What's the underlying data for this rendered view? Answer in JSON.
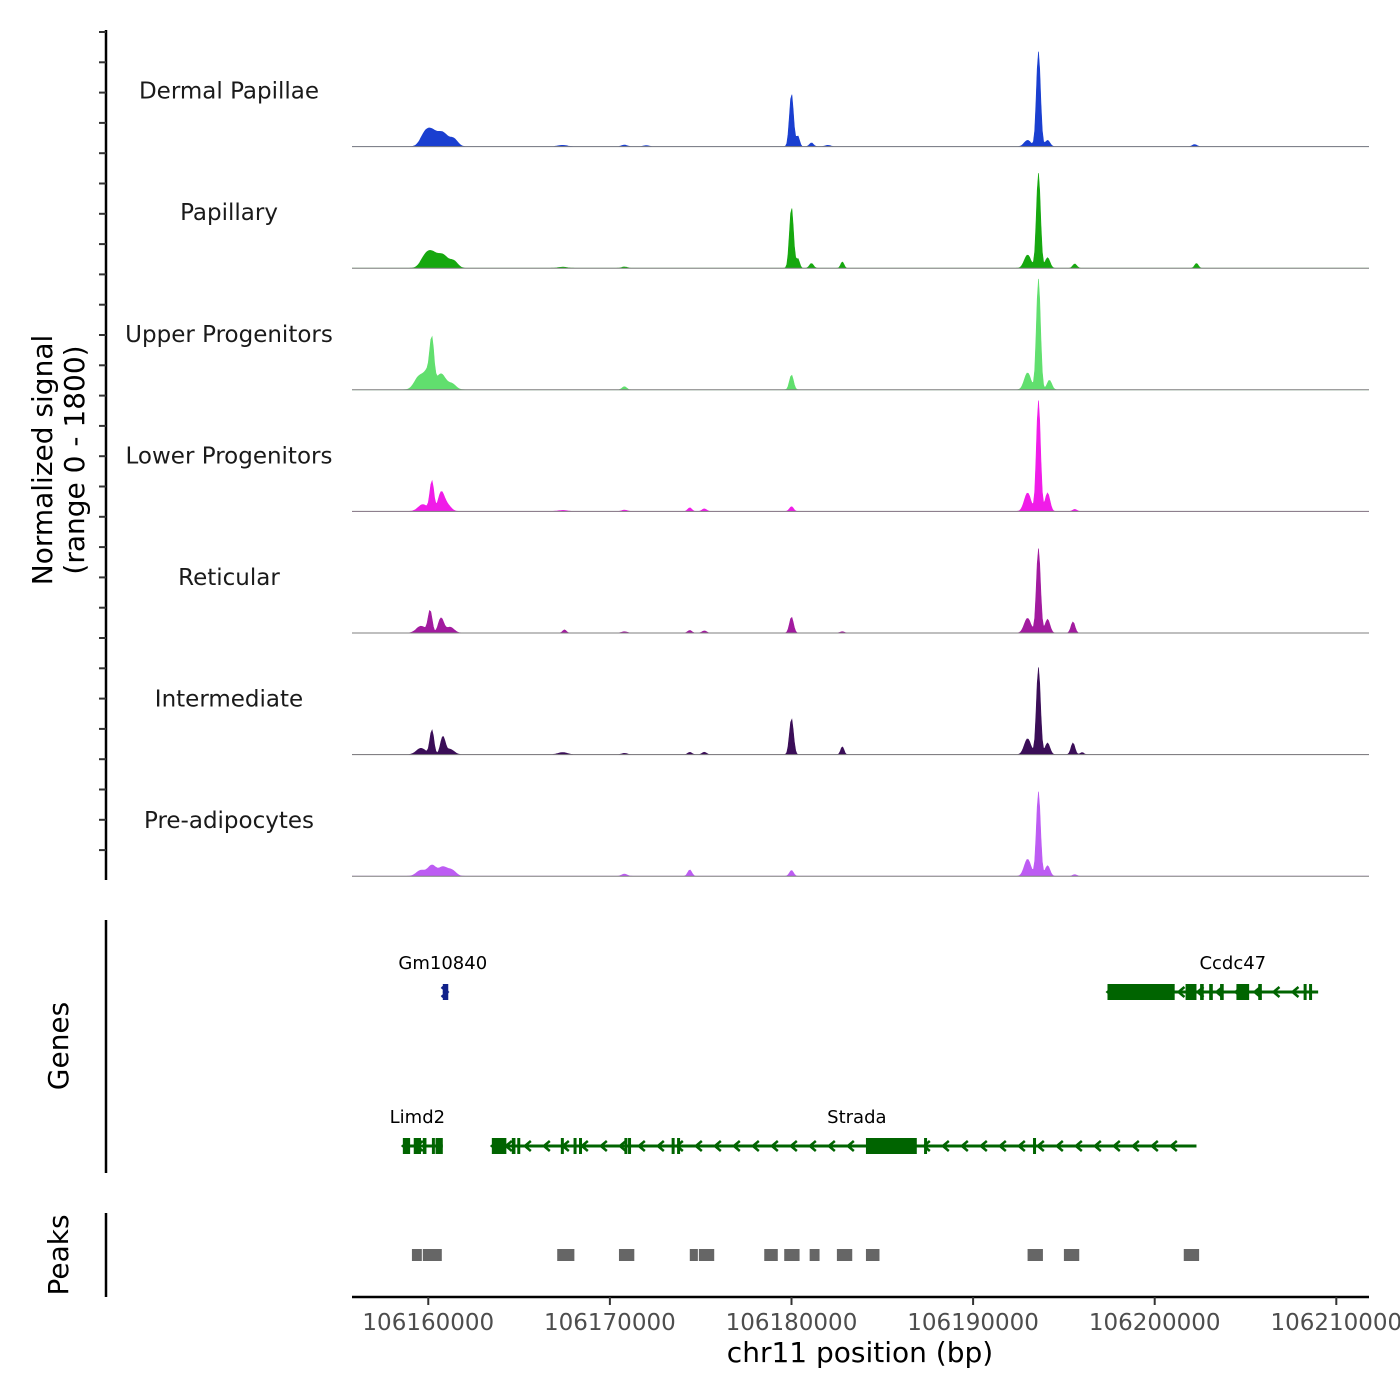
{
  "chart_data": {
    "type": "area",
    "chromosome": "chr11",
    "xlabel": "chr11 position (bp)",
    "ylabel_line1": "Normalized signal",
    "ylabel_line2": "(range 0 - 1800)",
    "ylim": [
      0,
      1800
    ],
    "xlim": [
      106155800,
      106211800
    ],
    "x_ticks": [
      106160000,
      106170000,
      106180000,
      106190000,
      106200000,
      106210000
    ],
    "x_tick_labels": [
      "106160000",
      "106170000",
      "106180000",
      "106190000",
      "106200000",
      "106210000"
    ],
    "series": [
      {
        "name": "Dermal Papillae",
        "color": "#1a3fd0",
        "peaks": [
          [
            106159800,
            200,
            250
          ],
          [
            106160200,
            260,
            280
          ],
          [
            106160800,
            250,
            280
          ],
          [
            106161400,
            140,
            220
          ],
          [
            106167400,
            25,
            250
          ],
          [
            106170800,
            30,
            150
          ],
          [
            106172000,
            20,
            150
          ],
          [
            106180000,
            1000,
            110
          ],
          [
            106180350,
            200,
            90
          ],
          [
            106181100,
            70,
            110
          ],
          [
            106182000,
            25,
            150
          ],
          [
            106193000,
            120,
            180
          ],
          [
            106193600,
            1800,
            110
          ],
          [
            106194100,
            120,
            130
          ],
          [
            106202200,
            40,
            120
          ]
        ]
      },
      {
        "name": "Papillary",
        "color": "#16a80f",
        "peaks": [
          [
            106159800,
            170,
            250
          ],
          [
            106160200,
            260,
            280
          ],
          [
            106160800,
            240,
            280
          ],
          [
            106161400,
            130,
            220
          ],
          [
            106167400,
            20,
            250
          ],
          [
            106170800,
            25,
            150
          ],
          [
            106180000,
            1150,
            110
          ],
          [
            106180350,
            180,
            90
          ],
          [
            106181100,
            90,
            110
          ],
          [
            106182800,
            120,
            90
          ],
          [
            106193000,
            250,
            180
          ],
          [
            106193600,
            1800,
            110
          ],
          [
            106194100,
            200,
            130
          ],
          [
            106195600,
            80,
            110
          ],
          [
            106202300,
            90,
            100
          ]
        ]
      },
      {
        "name": "Upper Progenitors",
        "color": "#61df6e",
        "peaks": [
          [
            106159500,
            250,
            260
          ],
          [
            106160000,
            330,
            220
          ],
          [
            106160200,
            750,
            110
          ],
          [
            106160700,
            300,
            250
          ],
          [
            106161300,
            110,
            220
          ],
          [
            106170800,
            60,
            120
          ],
          [
            106180000,
            280,
            110
          ],
          [
            106193000,
            320,
            180
          ],
          [
            106193600,
            2100,
            110
          ],
          [
            106194200,
            180,
            130
          ]
        ]
      },
      {
        "name": "Lower Progenitors",
        "color": "#f01ce8",
        "peaks": [
          [
            106159700,
            130,
            250
          ],
          [
            106160200,
            560,
            110
          ],
          [
            106160700,
            320,
            160
          ],
          [
            106161000,
            140,
            220
          ],
          [
            106167400,
            20,
            250
          ],
          [
            106170800,
            25,
            150
          ],
          [
            106174400,
            70,
            110
          ],
          [
            106175200,
            50,
            120
          ],
          [
            106180000,
            90,
            110
          ],
          [
            106193000,
            350,
            180
          ],
          [
            106193600,
            2100,
            110
          ],
          [
            106194100,
            350,
            130
          ],
          [
            106195600,
            40,
            110
          ]
        ]
      },
      {
        "name": "Reticular",
        "color": "#a21b9f",
        "peaks": [
          [
            106159600,
            130,
            250
          ],
          [
            106160100,
            420,
            110
          ],
          [
            106160700,
            280,
            150
          ],
          [
            106161200,
            110,
            220
          ],
          [
            106167500,
            60,
            100
          ],
          [
            106170800,
            25,
            150
          ],
          [
            106174400,
            50,
            110
          ],
          [
            106175200,
            40,
            120
          ],
          [
            106180000,
            300,
            110
          ],
          [
            106182800,
            25,
            120
          ],
          [
            106193000,
            280,
            180
          ],
          [
            106193600,
            1600,
            110
          ],
          [
            106194100,
            260,
            130
          ],
          [
            106195500,
            210,
            110
          ]
        ]
      },
      {
        "name": "Intermediate",
        "color": "#3b0e58",
        "peaks": [
          [
            106159600,
            120,
            250
          ],
          [
            106160200,
            460,
            110
          ],
          [
            106160800,
            330,
            130
          ],
          [
            106161200,
            100,
            220
          ],
          [
            106167400,
            40,
            250
          ],
          [
            106170800,
            25,
            150
          ],
          [
            106174400,
            45,
            110
          ],
          [
            106175200,
            45,
            120
          ],
          [
            106180000,
            680,
            110
          ],
          [
            106182800,
            150,
            90
          ],
          [
            106193000,
            300,
            180
          ],
          [
            106193600,
            1650,
            110
          ],
          [
            106194100,
            220,
            130
          ],
          [
            106195500,
            220,
            110
          ],
          [
            106196000,
            40,
            100
          ]
        ]
      },
      {
        "name": "Pre-adipocytes",
        "color": "#bd5cf3",
        "peaks": [
          [
            106159600,
            110,
            250
          ],
          [
            106160200,
            200,
            220
          ],
          [
            106160800,
            170,
            240
          ],
          [
            106161300,
            110,
            220
          ],
          [
            106170800,
            40,
            150
          ],
          [
            106174400,
            120,
            110
          ],
          [
            106180000,
            110,
            110
          ],
          [
            106193000,
            320,
            180
          ],
          [
            106193600,
            1600,
            110
          ],
          [
            106194100,
            200,
            130
          ],
          [
            106195600,
            30,
            110
          ]
        ]
      }
    ],
    "genes_label": "Genes",
    "genes": [
      {
        "name": "Gm10840",
        "row": 0,
        "start": 106160800,
        "end": 106161100,
        "color": "#11218a",
        "strand": "+",
        "label_pos": 106160800,
        "exons": [
          [
            106160800,
            106161100
          ]
        ]
      },
      {
        "name": "Ccdc47",
        "row": 0,
        "start": 106197400,
        "end": 106209000,
        "color": "#006400",
        "strand": "-",
        "label_pos": 106204300,
        "exons": [
          [
            106197400,
            106201100
          ],
          [
            106201700,
            106202300
          ],
          [
            106202500,
            106202700
          ],
          [
            106203000,
            106203200
          ],
          [
            106203600,
            106203800
          ],
          [
            106204500,
            106205200
          ],
          [
            106205700,
            106205900
          ],
          [
            106208200,
            106208300
          ],
          [
            106208500,
            106208600
          ]
        ]
      },
      {
        "name": "Limd2",
        "row": 1,
        "start": 106158600,
        "end": 106160800,
        "color": "#006400",
        "strand": "-",
        "label_pos": 106159400,
        "exons": [
          [
            106158600,
            106159000
          ],
          [
            106159200,
            106159600
          ],
          [
            106159700,
            106159900
          ],
          [
            106160200,
            106160300
          ],
          [
            106160400,
            106160800
          ]
        ]
      },
      {
        "name": "Strada",
        "row": 1,
        "start": 106163500,
        "end": 106202300,
        "color": "#006400",
        "strand": "-",
        "label_pos": 106183600,
        "exons": [
          [
            106163500,
            106164300
          ],
          [
            106164600,
            106164800
          ],
          [
            106164900,
            106165000
          ],
          [
            106167300,
            106167400
          ],
          [
            106168000,
            106168100
          ],
          [
            106168300,
            106168400
          ],
          [
            106170800,
            106170900
          ],
          [
            106171000,
            106171100
          ],
          [
            106173400,
            106173500
          ],
          [
            106173700,
            106173800
          ],
          [
            106184100,
            106186900
          ],
          [
            106187300,
            106187400
          ],
          [
            106193300,
            106193400
          ]
        ]
      }
    ],
    "peaks_label": "Peaks",
    "peak_regions": [
      [
        106159100,
        106159700
      ],
      [
        106159700,
        106160800
      ],
      [
        106167100,
        106168100
      ],
      [
        106170500,
        106171400
      ],
      [
        106174400,
        106174900
      ],
      [
        106174900,
        106175800
      ],
      [
        106178500,
        106179300
      ],
      [
        106179600,
        106180500
      ],
      [
        106181000,
        106181600
      ],
      [
        106182500,
        106183400
      ],
      [
        106184100,
        106184900
      ],
      [
        106193000,
        106193900
      ],
      [
        106195000,
        106195900
      ],
      [
        106201600,
        106202500
      ]
    ],
    "peak_color": "#666666"
  }
}
